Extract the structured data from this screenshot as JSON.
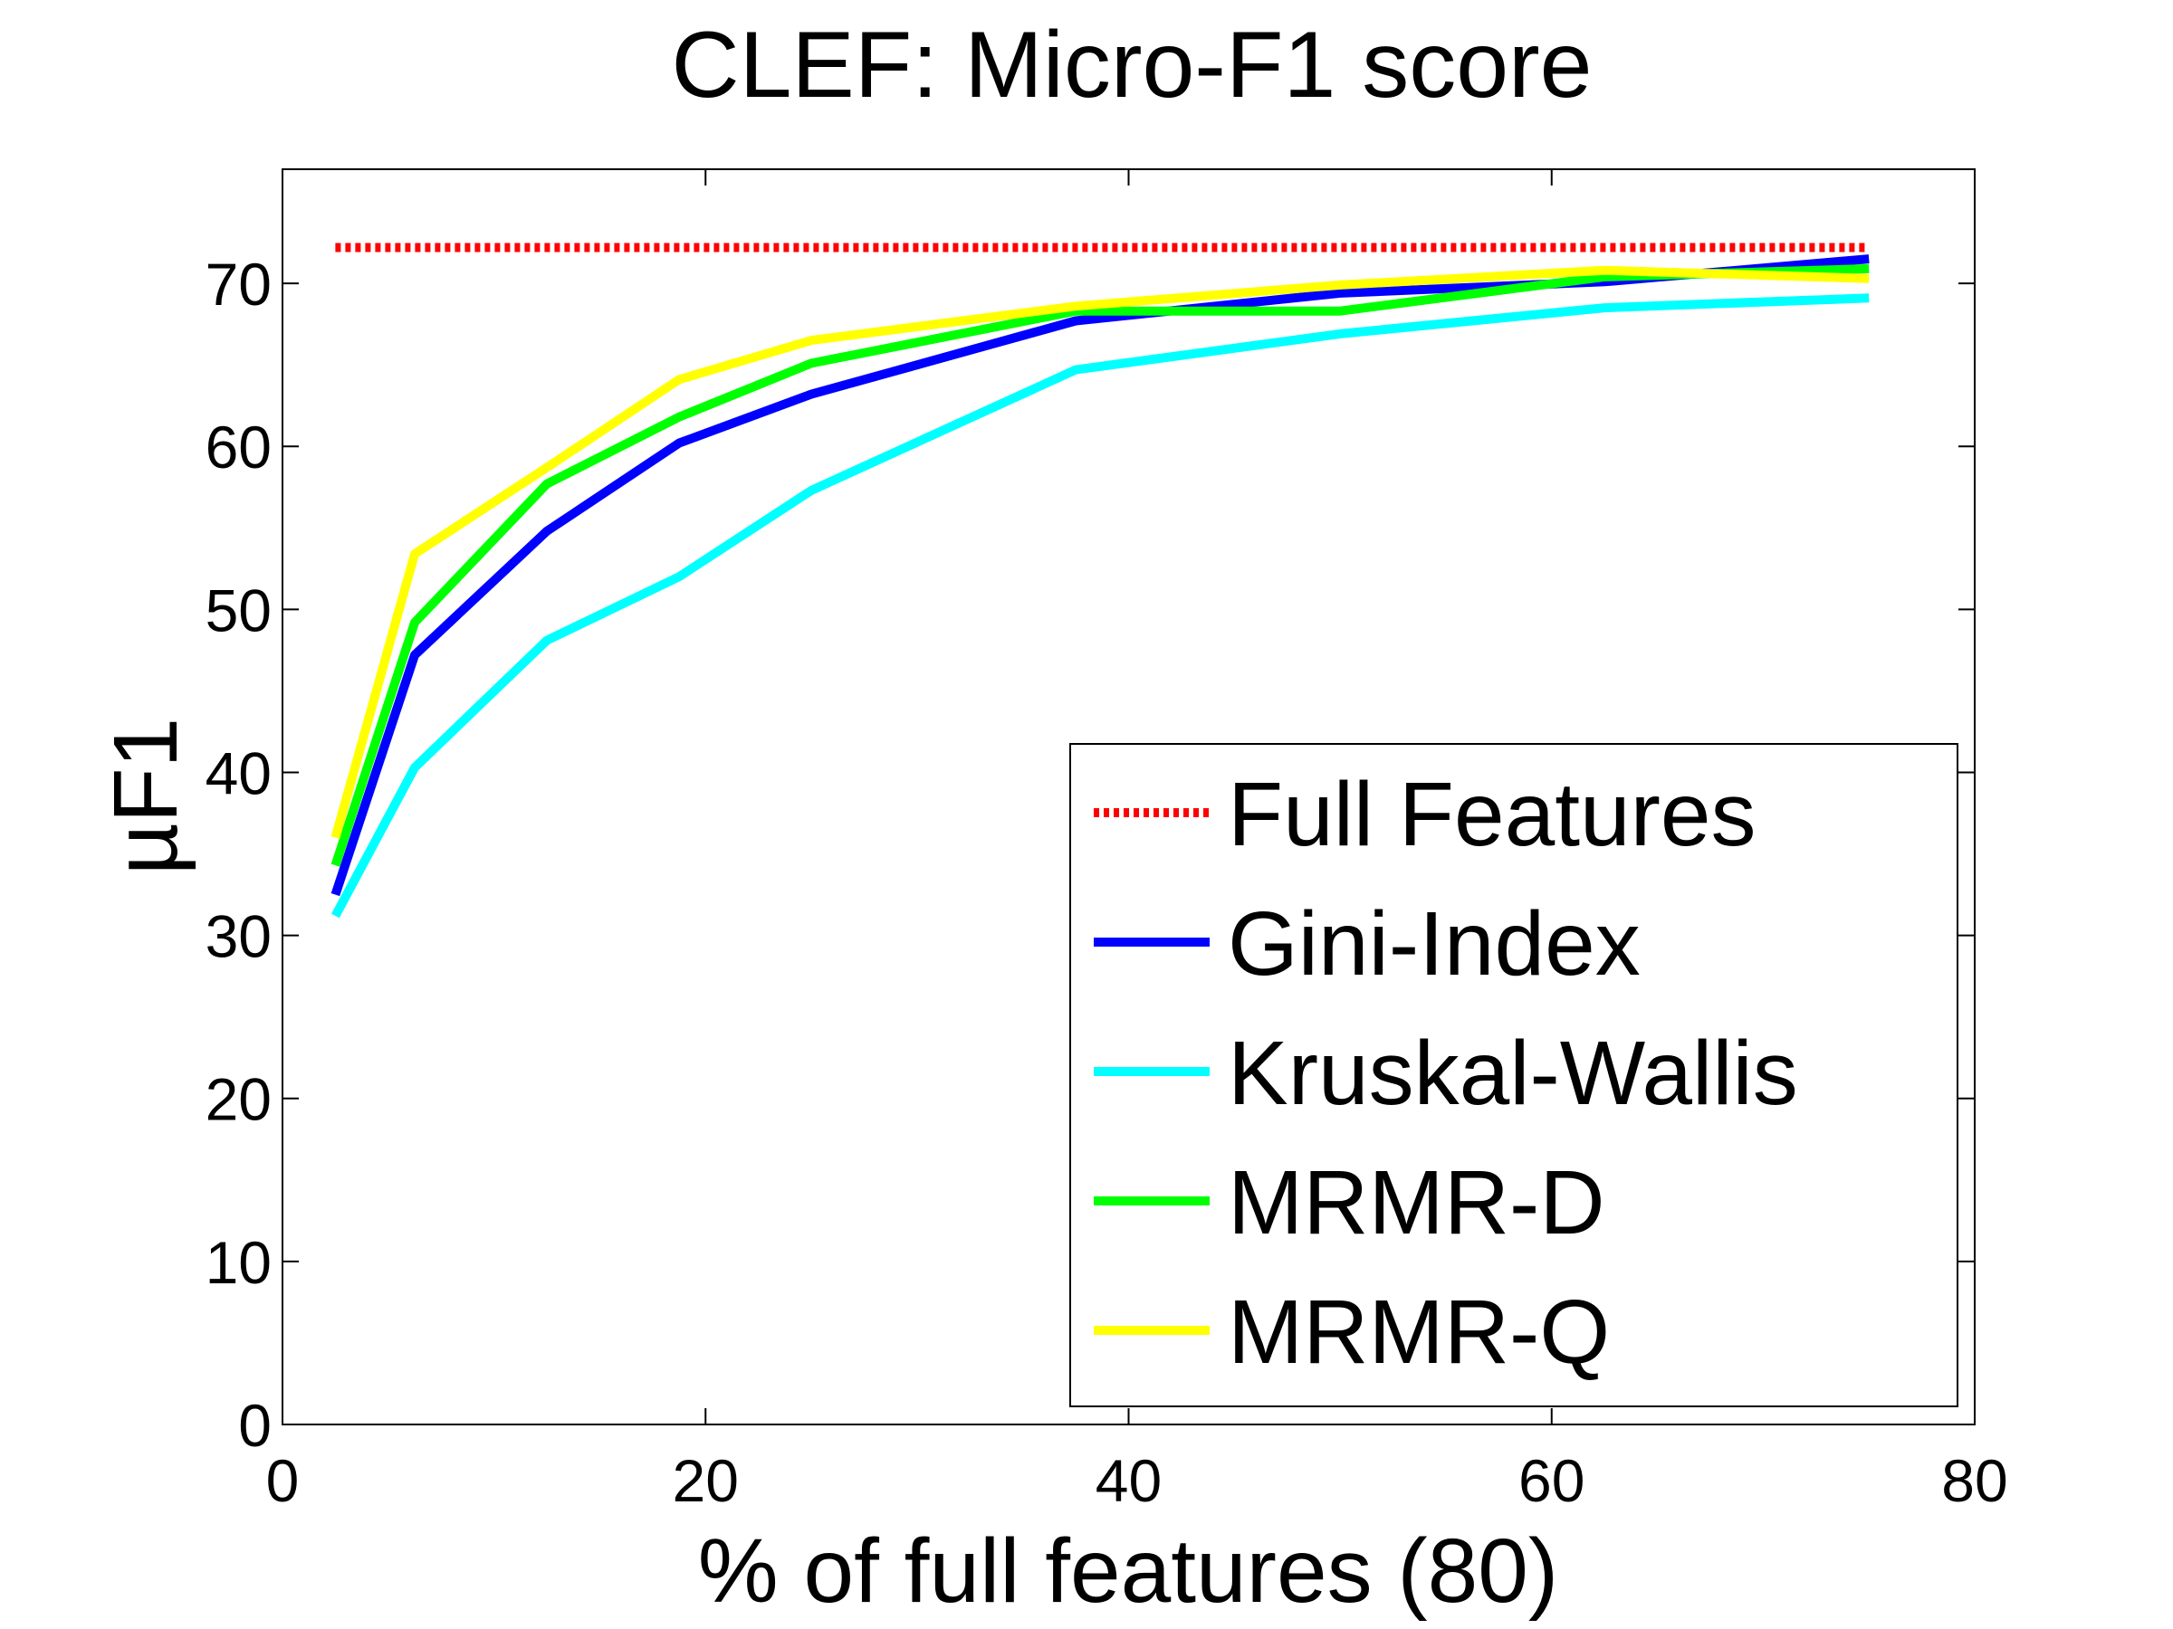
{
  "chart_data": {
    "type": "line",
    "title": "CLEF: Micro-F1 score",
    "xlabel": "% of full features (80)",
    "ylabel": "µF1",
    "xlim": [
      0,
      80
    ],
    "ylim": [
      0,
      77
    ],
    "xticks": [
      0,
      20,
      40,
      60,
      80
    ],
    "yticks": [
      0,
      10,
      20,
      30,
      40,
      50,
      60,
      70
    ],
    "grid": false,
    "legend_position": "bottom-right",
    "series": [
      {
        "name": "Full Features",
        "color": "#ff0000",
        "style": "dotted",
        "x": [
          2.5,
          75
        ],
        "y": [
          72.2,
          72.2
        ]
      },
      {
        "name": "Gini-Index",
        "color": "#0000ff",
        "style": "solid",
        "x": [
          2.5,
          6.25,
          12.5,
          18.75,
          25,
          37.5,
          50,
          62.5,
          75
        ],
        "y": [
          32.5,
          47.2,
          54.8,
          60.2,
          63.2,
          67.7,
          69.4,
          70.1,
          71.5
        ]
      },
      {
        "name": "Kruskal-Wallis",
        "color": "#00ffff",
        "style": "solid",
        "x": [
          2.5,
          6.25,
          12.5,
          18.75,
          25,
          37.5,
          50,
          62.5,
          75
        ],
        "y": [
          31.2,
          40.3,
          48.1,
          52.0,
          57.3,
          64.7,
          66.9,
          68.5,
          69.1
        ]
      },
      {
        "name": "MRMR-D",
        "color": "#00ff00",
        "style": "solid",
        "x": [
          2.5,
          6.25,
          12.5,
          18.75,
          25,
          37.5,
          50,
          62.5,
          75
        ],
        "y": [
          34.3,
          49.2,
          57.7,
          61.8,
          65.1,
          68.3,
          68.3,
          70.4,
          70.9
        ]
      },
      {
        "name": "MRMR-Q",
        "color": "#ffff00",
        "style": "solid",
        "x": [
          2.5,
          6.25,
          12.5,
          18.75,
          25,
          37.5,
          50,
          62.5,
          75
        ],
        "y": [
          36.0,
          53.4,
          58.7,
          64.1,
          66.5,
          68.6,
          69.9,
          70.8,
          70.3
        ]
      }
    ]
  }
}
